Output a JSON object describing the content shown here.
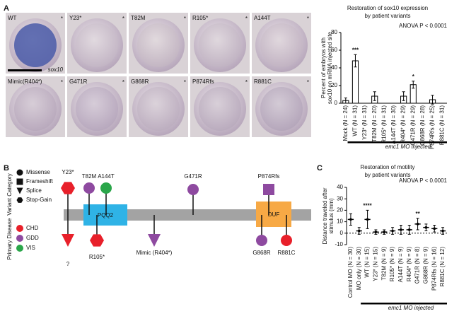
{
  "panel_labels": [
    "A",
    "B",
    "C"
  ],
  "panel_a": {
    "images": [
      {
        "label": "WT",
        "mark": "*",
        "tone": "#4a5aa8"
      },
      {
        "label": "Y23*",
        "mark": "*",
        "tone": "#c9bcc8"
      },
      {
        "label": "T82M",
        "mark": "*",
        "tone": "#c8bdc4"
      },
      {
        "label": "R105*",
        "mark": "*",
        "tone": "#c2b6c4"
      },
      {
        "label": "A144T",
        "mark": "*",
        "tone": "#c6b7c2"
      },
      {
        "label": "Mimic(R404*)",
        "mark": "*",
        "tone": "#ab9cb3"
      },
      {
        "label": "G471R",
        "mark": "*",
        "tone": "#a898b4"
      },
      {
        "label": "G868R",
        "mark": "*",
        "tone": "#b8aab9"
      },
      {
        "label": "P874Rfs",
        "mark": "*",
        "tone": "#b0a0b4"
      },
      {
        "label": "R881C",
        "mark": "*",
        "tone": "#a093ab"
      }
    ],
    "stain_label": "sox10"
  },
  "panel_b": {
    "legend_variant_title": "Variant Category",
    "legend_variant": [
      {
        "name": "Missense",
        "shape": "circle"
      },
      {
        "name": "Frameshift",
        "shape": "square"
      },
      {
        "name": "Splice",
        "shape": "triangle"
      },
      {
        "name": "Stop-Gain",
        "shape": "hexagon"
      }
    ],
    "legend_disease_title": "Primary Disease",
    "legend_disease": [
      {
        "name": "CHD",
        "color": "#e8202a"
      },
      {
        "name": "GDD",
        "color": "#8e4aa0"
      },
      {
        "name": "VIS",
        "color": "#2aa64a"
      }
    ],
    "domains": [
      {
        "name": "PQQ2",
        "color": "#2fb3e6"
      },
      {
        "name": "DUF",
        "color": "#f7a945"
      }
    ],
    "variants": [
      {
        "label": "Y23*",
        "side": "top",
        "shape": "hexagon",
        "color": "#e8202a"
      },
      {
        "label": "T82M",
        "side": "top",
        "shape": "circle",
        "color": "#8e4aa0"
      },
      {
        "label": "A144T",
        "side": "top",
        "shape": "circle",
        "color": "#2aa64a"
      },
      {
        "label": "G471R",
        "side": "top",
        "shape": "circle",
        "color": "#8e4aa0"
      },
      {
        "label": "P874Rfs",
        "side": "top",
        "shape": "square",
        "color": "#8e4aa0"
      },
      {
        "label": "?",
        "side": "bottom",
        "shape": "triangle",
        "color": "#e8202a"
      },
      {
        "label": "R105*",
        "side": "bottom",
        "shape": "hexagon",
        "color": "#e8202a"
      },
      {
        "label": "Mimic (R404*)",
        "side": "bottom",
        "shape": "triangle",
        "color": "#8e4aa0"
      },
      {
        "label": "G868R",
        "side": "bottom",
        "shape": "circle",
        "color": "#8e4aa0"
      },
      {
        "label": "R881C",
        "side": "bottom",
        "shape": "circle",
        "color": "#e8202a"
      }
    ]
  },
  "chart_data": [
    {
      "type": "bar",
      "title": [
        "Restoration of sox10 expression",
        "by patient variants"
      ],
      "annotation": "ANOVA P < 0.0001",
      "ylabel": [
        "Percent of embryos with",
        "sox10 on mRNA injected site"
      ],
      "categories": [
        "Mock (N = 24)",
        "WT (N = 31)",
        "Y23* (N = 31)",
        "T82M (N = 20)",
        "R105* (N = 31)",
        "A144T (N = 30)",
        "R404* (N = 29)",
        "G471R (N = 29)",
        "G868R (N = 28)",
        "P874Rfs (N = 25)",
        "R881C (N = 31)"
      ],
      "values": [
        3,
        48,
        0,
        8,
        0,
        0,
        8,
        21,
        0,
        4,
        0
      ],
      "errors": [
        3,
        7,
        0,
        5,
        0,
        0,
        5,
        4,
        0,
        5,
        0
      ],
      "significance": [
        null,
        "***",
        null,
        null,
        null,
        null,
        null,
        "*",
        null,
        null,
        null
      ],
      "xlabel": "emc1 MO injected",
      "ylim": [
        0,
        80
      ],
      "yticks": [
        0,
        20,
        40,
        60,
        80
      ],
      "color": "#ffffff"
    },
    {
      "type": "dot",
      "title": [
        "Restoration of motility",
        "by patient variants"
      ],
      "annotation": "ANOVA P < 0.0001",
      "ylabel": [
        "Distance traveled after",
        "stimulus (mm)"
      ],
      "categories": [
        "Control MO (N = 30)",
        "MO only (N = 30)",
        "WT (N = 15)",
        "Y23* (N = 15)",
        "T82M (N = 9)",
        "R105* (N = 9)",
        "A144T (N = 9)",
        "R404* (N = 9)",
        "G471R (N = 8)",
        "G868R (N = 9)",
        "P874Rfs (N = 16)",
        "R881C (N = 12)"
      ],
      "values": [
        12,
        2,
        12,
        1,
        1,
        2,
        3,
        3,
        8,
        5,
        4,
        2
      ],
      "errors": [
        5,
        3,
        8,
        2,
        2,
        3,
        4,
        4,
        5,
        3,
        3,
        3
      ],
      "significance": [
        null,
        null,
        "****",
        null,
        null,
        null,
        null,
        null,
        "**",
        null,
        null,
        null
      ],
      "xlabel": "emc1 MO injected",
      "ylim": [
        -10,
        40
      ],
      "yticks": [
        -10,
        0,
        10,
        20,
        30,
        40
      ],
      "color": "#000000"
    }
  ]
}
